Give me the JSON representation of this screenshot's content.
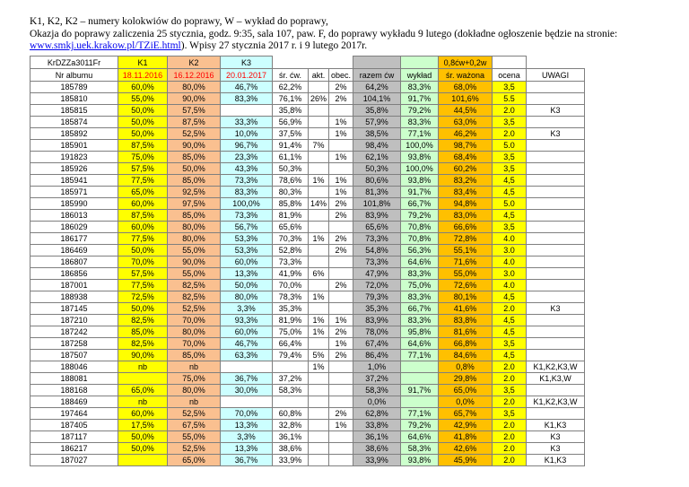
{
  "intro": {
    "line1": "K1, K2, K2 – numery kolokwiów do poprawy, W – wykład do poprawy,",
    "line2": "Okazja do poprawy zaliczenia 25 stycznia, godz. 9:35, sala 107, paw. F, do poprawy wykładu 9 lutego (dokładne ogłoszenie będzie na stronie:",
    "line3_link": "www.smkj.uek.krakow.pl/TZiE.html",
    "line3_rest": "). Wpisy 27 stycznia 2017 r. i 9 lutego 2017r."
  },
  "table": {
    "group_header": {
      "code": "KrDZZa3011Fr",
      "k1": "K1",
      "k2": "K2",
      "k3": "K3",
      "weighted": "0,8ćw+0,2w"
    },
    "columns": [
      "Nr albumu",
      "18.11.2016",
      "16.12.2016",
      "20.01.2017",
      "śr. ćw.",
      "akt.",
      "obec.",
      "razem ćw",
      "wykład",
      "śr. ważona",
      "ocena",
      "UWAGI"
    ],
    "rows": [
      [
        "185789",
        "60,0%",
        "80,0%",
        "46,7%",
        "62,2%",
        "",
        "2%",
        "64,2%",
        "83,3%",
        "68,0%",
        "3,5",
        ""
      ],
      [
        "185810",
        "55,0%",
        "90,0%",
        "83,3%",
        "76,1%",
        "26%",
        "2%",
        "104,1%",
        "91,7%",
        "101,6%",
        "5.5",
        ""
      ],
      [
        "185815",
        "50,0%",
        "57,5%",
        "",
        "35,8%",
        "",
        "",
        "35,8%",
        "79,2%",
        "44,5%",
        "2.0",
        "K3"
      ],
      [
        "185874",
        "50,0%",
        "87,5%",
        "33,3%",
        "56,9%",
        "",
        "1%",
        "57,9%",
        "83,3%",
        "63,0%",
        "3,5",
        ""
      ],
      [
        "185892",
        "50,0%",
        "52,5%",
        "10,0%",
        "37,5%",
        "",
        "1%",
        "38,5%",
        "77,1%",
        "46,2%",
        "2.0",
        "K3"
      ],
      [
        "185901",
        "87,5%",
        "90,0%",
        "96,7%",
        "91,4%",
        "7%",
        "",
        "98,4%",
        "100,0%",
        "98,7%",
        "5.0",
        ""
      ],
      [
        "191823",
        "75,0%",
        "85,0%",
        "23,3%",
        "61,1%",
        "",
        "1%",
        "62,1%",
        "93,8%",
        "68,4%",
        "3,5",
        ""
      ],
      [
        "185926",
        "57,5%",
        "50,0%",
        "43,3%",
        "50,3%",
        "",
        "",
        "50,3%",
        "100,0%",
        "60,2%",
        "3,5",
        ""
      ],
      [
        "185941",
        "77,5%",
        "85,0%",
        "73,3%",
        "78,6%",
        "1%",
        "1%",
        "80,6%",
        "93,8%",
        "83,2%",
        "4,5",
        ""
      ],
      [
        "185971",
        "65,0%",
        "92,5%",
        "83,3%",
        "80,3%",
        "",
        "1%",
        "81,3%",
        "91,7%",
        "83,4%",
        "4,5",
        ""
      ],
      [
        "185990",
        "60,0%",
        "97,5%",
        "100,0%",
        "85,8%",
        "14%",
        "2%",
        "101,8%",
        "66,7%",
        "94,8%",
        "5.0",
        ""
      ],
      [
        "186013",
        "87,5%",
        "85,0%",
        "73,3%",
        "81,9%",
        "",
        "2%",
        "83,9%",
        "79,2%",
        "83,0%",
        "4,5",
        ""
      ],
      [
        "186029",
        "60,0%",
        "80,0%",
        "56,7%",
        "65,6%",
        "",
        "",
        "65,6%",
        "70,8%",
        "66,6%",
        "3,5",
        ""
      ],
      [
        "186177",
        "77,5%",
        "80,0%",
        "53,3%",
        "70,3%",
        "1%",
        "2%",
        "73,3%",
        "70,8%",
        "72,8%",
        "4.0",
        ""
      ],
      [
        "186469",
        "50,0%",
        "55,0%",
        "53,3%",
        "52,8%",
        "",
        "2%",
        "54,8%",
        "56,3%",
        "55,1%",
        "3.0",
        ""
      ],
      [
        "186807",
        "70,0%",
        "90,0%",
        "60,0%",
        "73,3%",
        "",
        "",
        "73,3%",
        "64,6%",
        "71,6%",
        "4.0",
        ""
      ],
      [
        "186856",
        "57,5%",
        "55,0%",
        "13,3%",
        "41,9%",
        "6%",
        "",
        "47,9%",
        "83,3%",
        "55,0%",
        "3.0",
        ""
      ],
      [
        "187001",
        "77,5%",
        "82,5%",
        "50,0%",
        "70,0%",
        "",
        "2%",
        "72,0%",
        "75,0%",
        "72,6%",
        "4.0",
        ""
      ],
      [
        "188938",
        "72,5%",
        "82,5%",
        "80,0%",
        "78,3%",
        "1%",
        "",
        "79,3%",
        "83,3%",
        "80,1%",
        "4,5",
        ""
      ],
      [
        "187145",
        "50,0%",
        "52,5%",
        "3,3%",
        "35,3%",
        "",
        "",
        "35,3%",
        "66,7%",
        "41,6%",
        "2.0",
        "K3"
      ],
      [
        "187210",
        "82,5%",
        "70,0%",
        "93,3%",
        "81,9%",
        "1%",
        "1%",
        "83,9%",
        "83,3%",
        "83,8%",
        "4,5",
        ""
      ],
      [
        "187242",
        "85,0%",
        "80,0%",
        "60,0%",
        "75,0%",
        "1%",
        "2%",
        "78,0%",
        "95,8%",
        "81,6%",
        "4,5",
        ""
      ],
      [
        "187258",
        "82,5%",
        "70,0%",
        "46,7%",
        "66,4%",
        "",
        "1%",
        "67,4%",
        "64,6%",
        "66,8%",
        "3,5",
        ""
      ],
      [
        "187507",
        "90,0%",
        "85,0%",
        "63,3%",
        "79,4%",
        "5%",
        "2%",
        "86,4%",
        "77,1%",
        "84,6%",
        "4,5",
        ""
      ],
      [
        "188046",
        "nb",
        "nb",
        "",
        "",
        "1%",
        "",
        "1,0%",
        "",
        "0,8%",
        "2.0",
        "K1,K2,K3,W"
      ],
      [
        "188081",
        "",
        "75,0%",
        "36,7%",
        "37,2%",
        "",
        "",
        "37,2%",
        "",
        "29,8%",
        "2.0",
        "K1,K3,W"
      ],
      [
        "188168",
        "65,0%",
        "80,0%",
        "30,0%",
        "58,3%",
        "",
        "",
        "58,3%",
        "91,7%",
        "65,0%",
        "3,5",
        ""
      ],
      [
        "188469",
        "nb",
        "nb",
        "",
        "",
        "",
        "",
        "0,0%",
        "",
        "0,0%",
        "2.0",
        "K1,K2,K3,W"
      ],
      [
        "197464",
        "60,0%",
        "52,5%",
        "70,0%",
        "60,8%",
        "",
        "2%",
        "62,8%",
        "77,1%",
        "65,7%",
        "3,5",
        ""
      ],
      [
        "187405",
        "17,5%",
        "67,5%",
        "13,3%",
        "32,8%",
        "",
        "1%",
        "33,8%",
        "79,2%",
        "42,9%",
        "2.0",
        "K1,K3"
      ],
      [
        "187117",
        "50,0%",
        "55,0%",
        "3,3%",
        "36,1%",
        "",
        "",
        "36,1%",
        "64,6%",
        "41,8%",
        "2.0",
        "K3"
      ],
      [
        "186217",
        "50,0%",
        "52,5%",
        "13,3%",
        "38,6%",
        "",
        "",
        "38,6%",
        "58,3%",
        "42,6%",
        "2.0",
        "K3"
      ],
      [
        "187027",
        "",
        "65,0%",
        "36,7%",
        "33,9%",
        "",
        "",
        "33,9%",
        "93,8%",
        "45,9%",
        "2.0",
        "K1,K3"
      ]
    ]
  },
  "colors": {
    "k1_fill": "#FFFF00",
    "k2_fill": "#FAC090",
    "k3_fill": "#CCFFFF",
    "razem_fill": "#BFBFBF",
    "wyklad_fill": "#CCFFCC",
    "wazona_fill": "#FFC000",
    "ocena_fill": "#FFFF00",
    "date_text": "#FF0000",
    "link_text": "#0000EE"
  }
}
